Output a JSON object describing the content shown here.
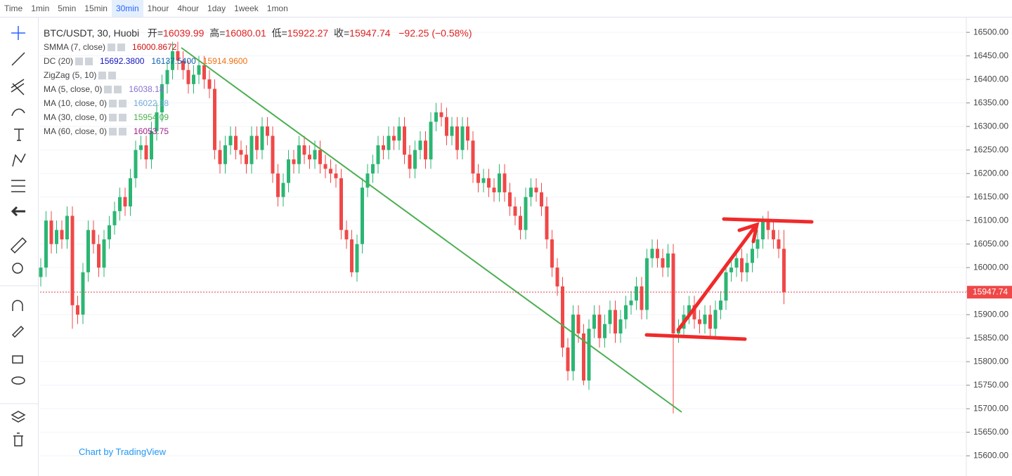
{
  "toolbar": {
    "time_label": "Time",
    "intervals": [
      "1min",
      "5min",
      "15min",
      "30min",
      "1hour",
      "4hour",
      "1day",
      "1week",
      "1mon"
    ],
    "active": "30min"
  },
  "legend": {
    "symbol": "BTC/USDT, 30, Huobi",
    "open_label": "开=",
    "high_label": "高=",
    "low_label": "低=",
    "close_label": "收=",
    "change": "−92.25 (−0.58%)"
  },
  "indicators": [
    {
      "name": "SMMA (7, close)",
      "values": [
        "16000.8672"
      ],
      "colors": [
        "#d01010"
      ]
    },
    {
      "name": "DC (20)",
      "values": [
        "15692.3800",
        "16137.5400",
        "15914.9600"
      ],
      "colors": [
        "#1010c0",
        "#1060b0",
        "#f07010"
      ]
    },
    {
      "name": "ZigZag (5, 10)",
      "values": [],
      "colors": []
    },
    {
      "name": "MA (5, close, 0)",
      "values": [
        "16038.18"
      ],
      "colors": [
        "#8a6fd0"
      ]
    },
    {
      "name": "MA (10, close, 0)",
      "values": [
        "16022.38"
      ],
      "colors": [
        "#6fa8dc"
      ]
    },
    {
      "name": "MA (30, close, 0)",
      "values": [
        "15954.09"
      ],
      "colors": [
        "#4caf50"
      ]
    },
    {
      "name": "MA (60, close, 0)",
      "values": [
        "16053.75"
      ],
      "colors": [
        "#a0208a"
      ]
    }
  ],
  "watermark": "Chart by TradingView",
  "chart_data": {
    "type": "candlestick",
    "up_color": "#2bb673",
    "down_color": "#f04848",
    "grid": true,
    "ylim": [
      15560,
      16533
    ],
    "yticks": [
      {
        "value": 15600,
        "label": "15600.00"
      },
      {
        "value": 15650,
        "label": "15650.00"
      },
      {
        "value": 15700,
        "label": "15700.00"
      },
      {
        "value": 15750,
        "label": "15750.00"
      },
      {
        "value": 15800,
        "label": "15800.00"
      },
      {
        "value": 15850,
        "label": "15850.00"
      },
      {
        "value": 15900,
        "label": "15900.00"
      },
      {
        "value": 15950,
        "label": "15950.00"
      },
      {
        "value": 16000,
        "label": "16000.00"
      },
      {
        "value": 16050,
        "label": "16050.00"
      },
      {
        "value": 16100,
        "label": "16100.00"
      },
      {
        "value": 16150,
        "label": "16150.00"
      },
      {
        "value": 16200,
        "label": "16200.00"
      },
      {
        "value": 16250,
        "label": "16250.00"
      },
      {
        "value": 16300,
        "label": "16300.00"
      },
      {
        "value": 16350,
        "label": "16350.00"
      },
      {
        "value": 16400,
        "label": "16400.00"
      },
      {
        "value": 16450,
        "label": "16450.00"
      },
      {
        "value": 16500,
        "label": "16500.00"
      }
    ],
    "open": [
      15980,
      16000,
      16100,
      16050,
      16080,
      16060,
      16110,
      15920,
      15900,
      15990,
      16080,
      16050,
      16000,
      16060,
      16090,
      16120,
      16150,
      16130,
      16190,
      16250,
      16260,
      16230,
      16290,
      16330,
      16390,
      16420,
      16460,
      16440,
      16420,
      16390,
      16410,
      16430,
      16400,
      16380,
      16250,
      16220,
      16260,
      16280,
      16250,
      16240,
      16220,
      16280,
      16250,
      16300,
      16280,
      16200,
      16150,
      16180,
      16230,
      16220,
      16260,
      16240,
      16230,
      16250,
      16220,
      16210,
      16200,
      16190,
      16080,
      16060,
      15990,
      16050,
      16170,
      16200,
      16220,
      16260,
      16250,
      16280,
      16270,
      16300,
      16240,
      16210,
      16250,
      16270,
      16230,
      16310,
      16330,
      16320,
      16280,
      16300,
      16250,
      16300,
      16270,
      16200,
      16180,
      16190,
      16170,
      16160,
      16200,
      16160,
      16130,
      16110,
      16080,
      16150,
      16170,
      16160,
      16130,
      16060,
      16000,
      15960,
      15830,
      15780,
      15900,
      15860,
      15760,
      15870,
      15900,
      15850,
      15880,
      15910,
      15860,
      15890,
      15920,
      15930,
      15960,
      15910,
      16020,
      16040,
      16020,
      16000,
      16030,
      15860,
      15870,
      15900,
      15920,
      15890,
      15880,
      15900,
      15870,
      15910,
      15930,
      15990,
      16000,
      16020,
      15990,
      16010,
      16040,
      16060,
      16100,
      16080,
      16060,
      16039.99
    ],
    "high": [
      16020,
      16120,
      16120,
      16100,
      16100,
      16130,
      16130,
      15940,
      16010,
      16100,
      16100,
      16070,
      16080,
      16110,
      16140,
      16170,
      16170,
      16210,
      16270,
      16280,
      16280,
      16310,
      16350,
      16410,
      16440,
      16480,
      16480,
      16460,
      16440,
      16430,
      16450,
      16450,
      16420,
      16400,
      16270,
      16280,
      16300,
      16300,
      16270,
      16260,
      16300,
      16300,
      16320,
      16320,
      16300,
      16220,
      16200,
      16250,
      16250,
      16280,
      16280,
      16260,
      16270,
      16270,
      16240,
      16230,
      16220,
      16210,
      16100,
      16080,
      16070,
      16190,
      16220,
      16240,
      16280,
      16280,
      16300,
      16300,
      16320,
      16320,
      16260,
      16270,
      16290,
      16290,
      16330,
      16350,
      16350,
      16340,
      16320,
      16320,
      16320,
      16320,
      16290,
      16220,
      16210,
      16210,
      16190,
      16220,
      16220,
      16180,
      16150,
      16130,
      16170,
      16190,
      16190,
      16180,
      16150,
      16080,
      16020,
      15980,
      15850,
      15920,
      15920,
      15880,
      15890,
      15920,
      15920,
      15900,
      15930,
      15930,
      15910,
      15940,
      15950,
      15980,
      15980,
      16040,
      16060,
      16060,
      16040,
      16050,
      16050,
      15890,
      15920,
      15940,
      15940,
      15910,
      15920,
      15920,
      15930,
      15950,
      16010,
      16020,
      16040,
      16040,
      16030,
      16060,
      16080,
      16110,
      16120,
      16100,
      16080,
      16080.01
    ],
    "low": [
      15960,
      15980,
      16030,
      16030,
      16040,
      16040,
      15870,
      15880,
      15880,
      15970,
      16030,
      15980,
      15980,
      16040,
      16070,
      16100,
      16110,
      16110,
      16170,
      16230,
      16210,
      16210,
      16270,
      16310,
      16370,
      16400,
      16420,
      16400,
      16370,
      16370,
      16390,
      16380,
      16360,
      16230,
      16200,
      16200,
      16240,
      16230,
      16220,
      16200,
      16200,
      16230,
      16230,
      16260,
      16180,
      16130,
      16130,
      16160,
      16200,
      16200,
      16220,
      16210,
      16210,
      16200,
      16190,
      16180,
      16170,
      16060,
      16040,
      15980,
      15970,
      16030,
      16150,
      16180,
      16200,
      16230,
      16230,
      16250,
      16250,
      16220,
      16190,
      16190,
      16230,
      16210,
      16210,
      16290,
      16300,
      16260,
      16260,
      16230,
      16230,
      16250,
      16180,
      16160,
      16160,
      16150,
      16140,
      16140,
      16140,
      16110,
      16090,
      16060,
      16060,
      16130,
      16140,
      16110,
      16040,
      15980,
      15940,
      15810,
      15760,
      15760,
      15840,
      15750,
      15740,
      15850,
      15830,
      15830,
      15860,
      15840,
      15840,
      15870,
      15900,
      15910,
      15890,
      15890,
      16000,
      16000,
      15980,
      15980,
      15690,
      15840,
      15850,
      15880,
      15870,
      15860,
      15860,
      15850,
      15850,
      15890,
      15910,
      15970,
      15980,
      15970,
      15970,
      15990,
      16020,
      16040,
      16060,
      16040,
      16020,
      15922.27
    ],
    "close": [
      16000,
      16100,
      16050,
      16080,
      16060,
      16110,
      15920,
      15900,
      15990,
      16080,
      16050,
      16000,
      16060,
      16090,
      16120,
      16150,
      16130,
      16190,
      16250,
      16260,
      16230,
      16290,
      16330,
      16390,
      16420,
      16460,
      16440,
      16420,
      16390,
      16410,
      16430,
      16400,
      16380,
      16250,
      16220,
      16260,
      16280,
      16250,
      16240,
      16220,
      16280,
      16250,
      16300,
      16280,
      16200,
      16150,
      16180,
      16230,
      16220,
      16260,
      16240,
      16230,
      16250,
      16220,
      16210,
      16200,
      16190,
      16080,
      16060,
      15990,
      16050,
      16170,
      16200,
      16220,
      16260,
      16250,
      16280,
      16270,
      16300,
      16240,
      16210,
      16250,
      16270,
      16230,
      16310,
      16330,
      16320,
      16280,
      16300,
      16250,
      16300,
      16270,
      16200,
      16180,
      16190,
      16170,
      16160,
      16200,
      16160,
      16130,
      16110,
      16080,
      16150,
      16170,
      16160,
      16130,
      16060,
      16000,
      15960,
      15830,
      15780,
      15900,
      15860,
      15760,
      15870,
      15900,
      15850,
      15880,
      15910,
      15860,
      15890,
      15920,
      15930,
      15960,
      15910,
      16020,
      16040,
      16020,
      16000,
      16030,
      15860,
      15870,
      15900,
      15920,
      15890,
      15880,
      15900,
      15870,
      15910,
      15930,
      15990,
      16000,
      16020,
      15990,
      16010,
      16040,
      16060,
      16100,
      16080,
      16060,
      16039.99,
      15947.74
    ]
  }
}
